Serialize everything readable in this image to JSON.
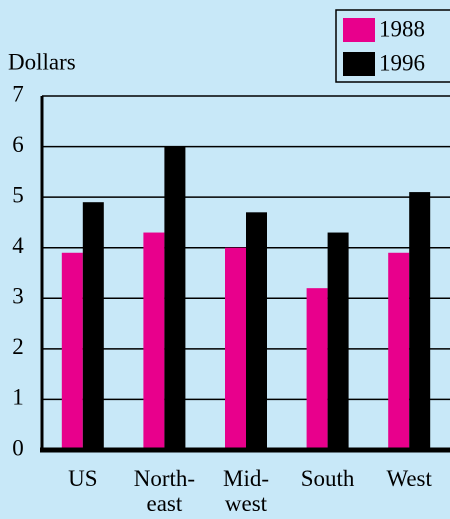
{
  "chart_data": {
    "type": "bar",
    "y_label": "Dollars",
    "categories": [
      "US",
      "North-\neast",
      "Mid-\nwest",
      "South",
      "West"
    ],
    "series": [
      {
        "name": "1988",
        "color": "#e8008c",
        "values": [
          3.9,
          4.3,
          4.0,
          3.2,
          3.9
        ]
      },
      {
        "name": "1996",
        "color": "#000000",
        "values": [
          4.9,
          6.0,
          4.7,
          4.3,
          5.1
        ]
      }
    ],
    "ylim": [
      0,
      7
    ],
    "yticks": [
      0,
      1,
      2,
      3,
      4,
      5,
      6,
      7
    ],
    "grid": true,
    "legend": "top-right"
  }
}
